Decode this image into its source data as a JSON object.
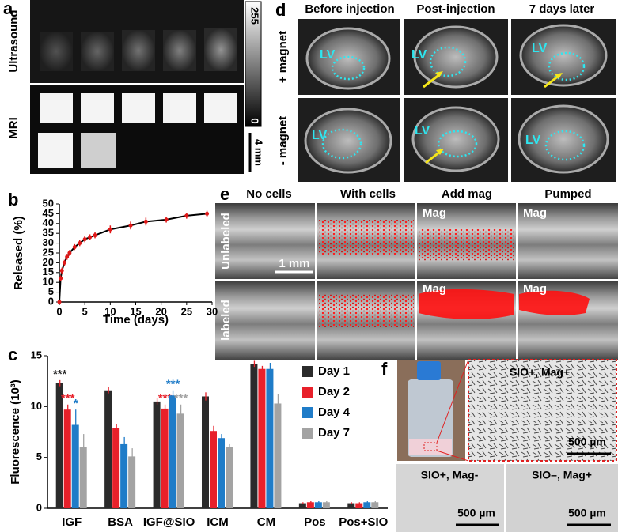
{
  "panels": {
    "a": {
      "label": "a",
      "row_labels": [
        "Ultrasound",
        "MRI"
      ],
      "colorbar_max": "255",
      "colorbar_min": "0",
      "scale": "4 mm"
    },
    "d": {
      "label": "d",
      "columns": [
        "Before injection",
        "Post-injection",
        "7 days later"
      ],
      "rows": [
        "+ magnet",
        "- magnet"
      ],
      "lv": [
        "LV",
        "LV",
        "LV",
        "LV",
        "LV",
        "LV"
      ]
    },
    "e": {
      "label": "e",
      "columns": [
        "No cells",
        "With cells",
        "Add mag",
        "Pumped"
      ],
      "rows": [
        "Unlabeled",
        "labeled"
      ],
      "scale": "1 mm",
      "mag": [
        "Mag",
        "Mag",
        "Mag",
        "Mag"
      ]
    },
    "f": {
      "label": "f",
      "main_title": "SIO+, Mag+",
      "main_scale": "500 µm",
      "left_title": "SIO+, Mag-",
      "left_scale": "500 µm",
      "right_title": "SIO–, Mag+",
      "right_scale": "500 µm"
    }
  },
  "chart_data": [
    {
      "type": "line",
      "panel_label": "b",
      "xlabel": "Time (days)",
      "ylabel": "Released (%)",
      "x": [
        0,
        0.25,
        0.5,
        1,
        1.5,
        2,
        3,
        4,
        5,
        6,
        7,
        10,
        14,
        17,
        21,
        25,
        29
      ],
      "values": [
        0,
        12,
        16,
        20,
        23,
        25,
        28,
        30,
        32,
        33,
        34,
        37,
        39,
        41,
        42,
        44,
        45
      ],
      "errors": [
        0,
        1.5,
        1.5,
        1.5,
        1.5,
        1.5,
        1.5,
        1.5,
        1.5,
        1.5,
        1.5,
        2,
        2,
        2,
        1.5,
        1.5,
        1.5
      ],
      "color": "#e01818",
      "line_color": "#000000",
      "xlim": [
        0,
        30
      ],
      "xticks": [
        0,
        5,
        10,
        15,
        20,
        25,
        30
      ],
      "ylim": [
        0,
        50
      ],
      "yticks": [
        0,
        5,
        10,
        15,
        20,
        25,
        30,
        35,
        40,
        45,
        50
      ]
    },
    {
      "type": "bar",
      "panel_label": "c",
      "ylabel": "Fluorescence (10³)",
      "categories": [
        "IGF",
        "BSA",
        "IGF@SIO",
        "ICM",
        "CM",
        "Pos",
        "Pos+SIO"
      ],
      "series": [
        {
          "name": "Day 1",
          "color": "#2b2b2b",
          "values": [
            12.3,
            11.6,
            10.5,
            11.0,
            14.2,
            0.5,
            0.5
          ],
          "errors": [
            0.3,
            0.3,
            0.3,
            0.4,
            0.3,
            0.1,
            0.1
          ],
          "stars": [
            "***",
            null,
            null,
            null,
            null,
            null,
            null
          ]
        },
        {
          "name": "Day 2",
          "color": "#e8202a",
          "values": [
            9.7,
            7.9,
            9.8,
            7.6,
            13.7,
            0.6,
            0.5
          ],
          "errors": [
            0.5,
            0.4,
            0.4,
            0.5,
            0.3,
            0.1,
            0.1
          ],
          "stars": [
            "***",
            null,
            "***",
            null,
            null,
            null,
            null
          ]
        },
        {
          "name": "Day 4",
          "color": "#1f7cc8",
          "values": [
            8.2,
            6.3,
            11.1,
            6.9,
            13.7,
            0.6,
            0.6
          ],
          "errors": [
            1.5,
            0.7,
            0.5,
            0.4,
            0.6,
            0.1,
            0.1
          ],
          "stars": [
            "*",
            null,
            "***",
            null,
            null,
            null,
            null
          ]
        },
        {
          "name": "Day 7",
          "color": "#a3a3a3",
          "values": [
            6.0,
            5.1,
            9.3,
            6.0,
            10.3,
            0.6,
            0.6
          ],
          "errors": [
            1.3,
            0.8,
            0.9,
            0.3,
            0.9,
            0.1,
            0.1
          ],
          "stars": [
            null,
            null,
            "***",
            null,
            null,
            null,
            null
          ]
        }
      ],
      "ylim": [
        0,
        15
      ],
      "yticks": [
        0,
        5,
        10,
        15
      ]
    }
  ]
}
